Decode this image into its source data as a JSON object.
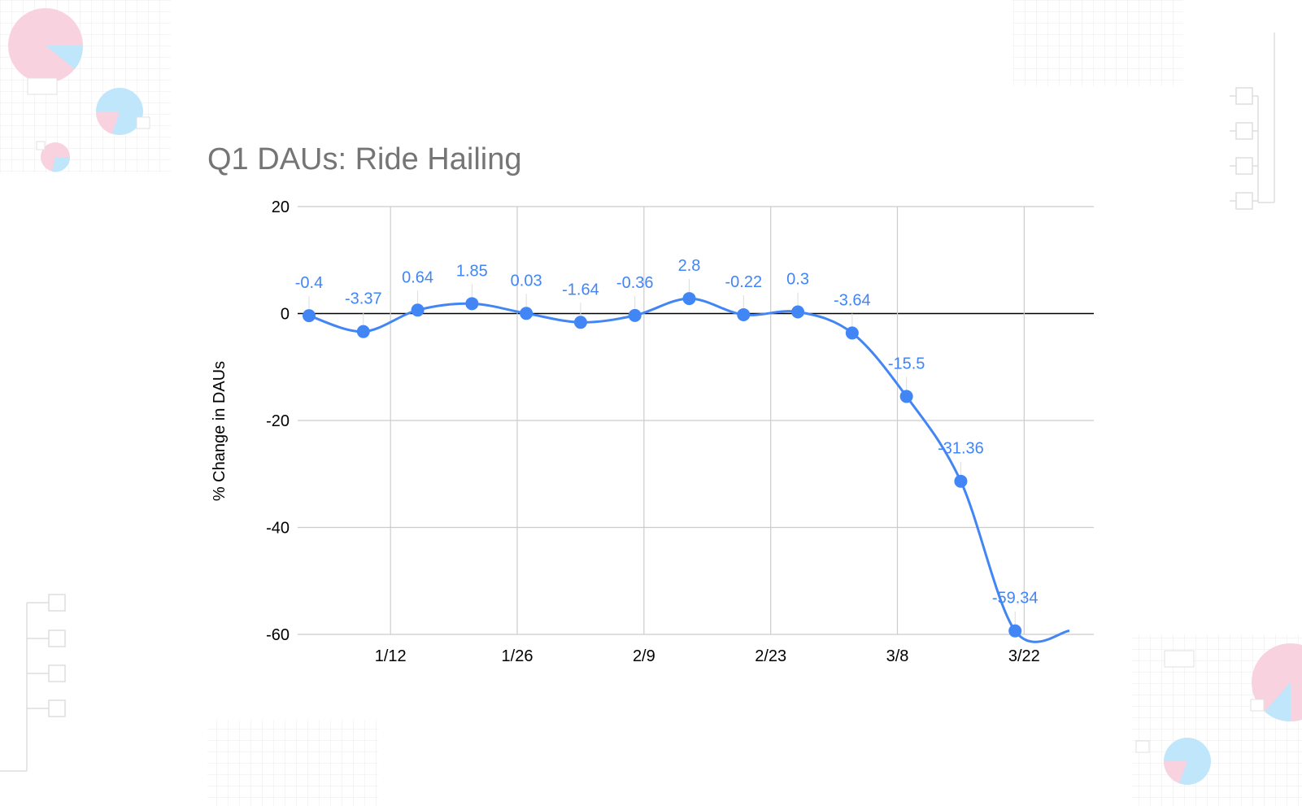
{
  "chart_data": {
    "type": "line",
    "title": "Q1 DAUs: Ride Hailing",
    "ylabel": "% Change in DAUs",
    "xlabel": "",
    "ylim": [
      -60,
      20
    ],
    "y_ticks": [
      20,
      0,
      -20,
      -40,
      -60
    ],
    "x_tick_labels": [
      "1/12",
      "1/26",
      "2/9",
      "2/23",
      "3/8",
      "3/22"
    ],
    "grid": true,
    "legend": "none",
    "colors": {
      "series": "#4285F4",
      "grid": "#cccccc",
      "zero_line": "#000000"
    },
    "series": [
      {
        "x": [
          "1/3",
          "1/9",
          "1/15",
          "1/21",
          "1/27",
          "2/2",
          "2/8",
          "2/14",
          "2/20",
          "2/26",
          "3/3",
          "3/9",
          "3/15",
          "3/21",
          "3/27"
        ],
        "values": [
          -0.4,
          -3.37,
          0.64,
          1.85,
          0.03,
          -1.64,
          -0.36,
          2.8,
          -0.22,
          0.3,
          -3.64,
          -15.5,
          -31.36,
          -59.34,
          -59.34
        ],
        "labels": [
          "-0.4",
          "-3.37",
          "0.64",
          "1.85",
          "0.03",
          "-1.64",
          "-0.36",
          "2.8",
          "-0.22",
          "0.3",
          "-3.64",
          "-15.5",
          "-31.36",
          "-59.34",
          ""
        ]
      }
    ]
  }
}
